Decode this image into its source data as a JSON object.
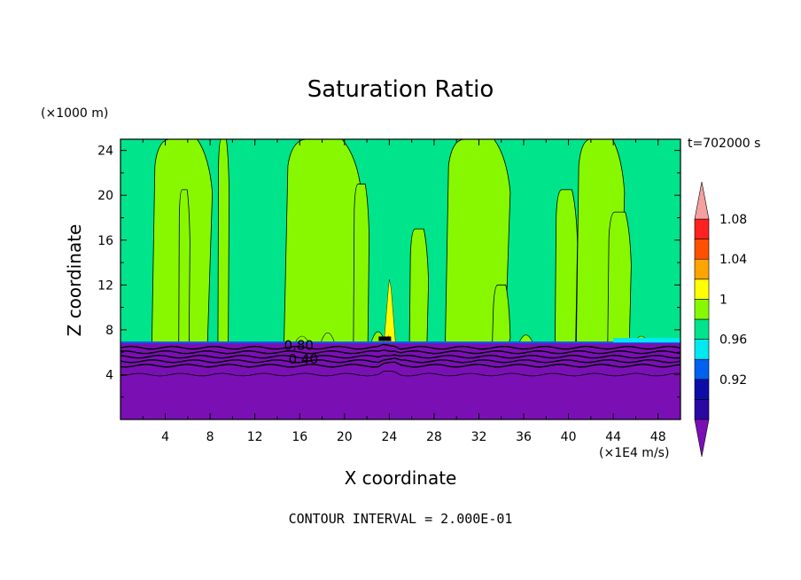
{
  "chart_data": {
    "type": "heatmap",
    "title": "Saturation Ratio",
    "xlabel": "X coordinate",
    "ylabel": "Z coordinate",
    "x_units": "(×1E4 m/s)",
    "z_units": "(×1000 m)",
    "time_label": "t=702000 s",
    "footer": "CONTOUR INTERVAL = 2.000E-01",
    "xlim": [
      0,
      50
    ],
    "ylim": [
      0,
      25
    ],
    "x_ticks": [
      4,
      8,
      12,
      16,
      20,
      24,
      28,
      32,
      36,
      40,
      44,
      48
    ],
    "y_ticks": [
      4,
      8,
      12,
      16,
      20,
      24
    ],
    "colorbar": {
      "colors": [
        "#7a10b4",
        "#2a08a4",
        "#0c0ca8",
        "#0060f0",
        "#00e8f0",
        "#00e48c",
        "#88f800",
        "#ffff00",
        "#ffa400",
        "#ff5000",
        "#ff2020",
        "#f4a0a0"
      ],
      "tick_labels": [
        "0.92",
        "0.96",
        "1",
        "1.04",
        "1.08"
      ],
      "tick_boundaries": [
        2,
        4,
        6,
        8,
        10
      ]
    },
    "contour_labels": [
      "0.80",
      "0.40"
    ],
    "regions": {
      "moist_layer_top_z": 6.8,
      "dry_layer_color": "#7a10b4",
      "background_color": "#00e48c",
      "plume_color": "#88f800",
      "peak_x": 24,
      "peak_z": 12.5
    }
  }
}
